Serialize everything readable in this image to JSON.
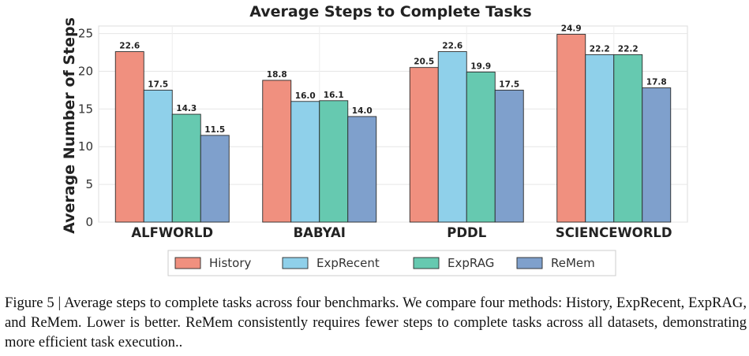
{
  "chart_data": {
    "type": "bar",
    "title": "Average Steps to Complete Tasks",
    "xlabel": "",
    "ylabel": "Average Number of Steps",
    "categories": [
      "ALFWORLD",
      "BABYAI",
      "PDDL",
      "SCIENCEWORLD"
    ],
    "series": [
      {
        "name": "History",
        "color": "#f0907f",
        "values": [
          22.6,
          18.8,
          20.5,
          24.9
        ]
      },
      {
        "name": "ExpRecent",
        "color": "#8fd0ea",
        "values": [
          17.5,
          16.0,
          22.6,
          22.2
        ]
      },
      {
        "name": "ExpRAG",
        "color": "#66c9b0",
        "values": [
          14.3,
          16.1,
          19.9,
          22.2
        ]
      },
      {
        "name": "ReMem",
        "color": "#7fa0cc",
        "values": [
          11.5,
          14.0,
          17.5,
          17.8
        ]
      }
    ],
    "ylim": [
      0,
      26
    ],
    "yticks": [
      0,
      5,
      10,
      15,
      20,
      25
    ],
    "grid": true,
    "legend_position": "bottom-center"
  },
  "caption": "Figure 5 | Average steps to complete tasks across four benchmarks. We compare four methods: History, ExpRecent, ExpRAG, and ReMem. Lower is better. ReMem consistently requires fewer steps to complete tasks across all datasets, demonstrating more efficient task execution.."
}
